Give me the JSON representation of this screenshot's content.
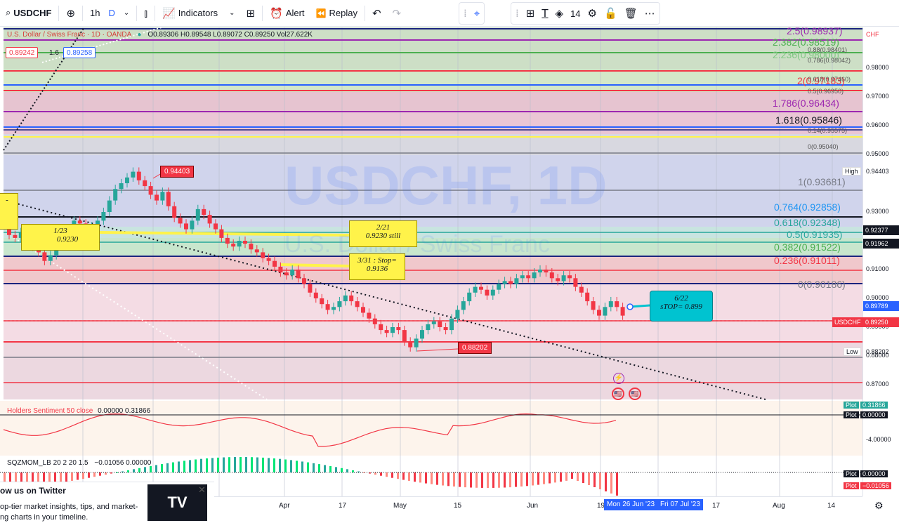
{
  "toolbar": {
    "symbol": "USDCHF",
    "interval": "1h",
    "interval_selected": "D",
    "indicators_label": "Indicators",
    "alert_label": "Alert",
    "replay_label": "Replay",
    "font_size": "14"
  },
  "legend": {
    "title": "U.S. Dollar / Swiss Franc · 1D · OANDA",
    "ohlc": "O0.89306 H0.89548 L0.89072 C0.89250 Vol27.622K",
    "sell_price": "0.89242",
    "spread": "1.6",
    "buy_price": "0.89258"
  },
  "watermark": {
    "symbol": "USDCHF, 1D",
    "name": "U.S. Dollar / Swiss Franc"
  },
  "price_axis": {
    "currency": "CHF",
    "ticks": [
      "0.98000",
      "0.97000",
      "0.96000",
      "0.95000",
      "0.93000",
      "0.91000",
      "0.90000",
      "0.89000",
      "0.88000",
      "0.87000"
    ],
    "high_label": "High",
    "high_value": "0.94403",
    "tag_1": "0.92377",
    "tag_2": "0.91962",
    "tag_3": "0.89789",
    "current_symbol": "USDCHF",
    "current_value": "0.89250",
    "low_label": "Low",
    "low_value": "0.88202"
  },
  "fib_levels": [
    {
      "text": "2.5(0.98937)",
      "color": "#9c27b0"
    },
    {
      "text": "2.382(0.98519)",
      "color": "#4caf50"
    },
    {
      "text": "2.236(0.98000)",
      "color": "#81c784"
    },
    {
      "text": "2(0.97183)",
      "color": "#f23645"
    },
    {
      "text": "1.786(0.96434)",
      "color": "#9c27b0"
    },
    {
      "text": "1.618(0.95846)",
      "color": "#131722"
    },
    {
      "text": "1(0.93681)",
      "color": "#787b86"
    },
    {
      "text": "0.764(0.92858)",
      "color": "#2196f3"
    },
    {
      "text": "0.618(0.92348)",
      "color": "#26a69a"
    },
    {
      "text": "0.5(0.91935)",
      "color": "#26a69a"
    },
    {
      "text": "0.382(0.91522)",
      "color": "#4caf50"
    },
    {
      "text": "0.236(0.91011)",
      "color": "#f23645"
    },
    {
      "text": "0(0.90186)",
      "color": "#787b86"
    }
  ],
  "fib_small": [
    {
      "text": "0.88(0.98401)"
    },
    {
      "text": "0.786(0.98042)"
    },
    {
      "text": "0.618(0.97460)"
    },
    {
      "text": "0.5(0.96950)"
    },
    {
      "text": "0.14(0.95575)"
    },
    {
      "text": "0(0.95040)"
    }
  ],
  "annotations": {
    "high_tag": "0.94403",
    "low_tag": "0.88202",
    "note_1a": "1/23",
    "note_1b": "0.9230",
    "note_2a": "2/21",
    "note_2b": "0.9230 still",
    "note_3a": "3/31 : Stop=",
    "note_3b": "0.9136",
    "note_4a": "6/22",
    "note_4b": "sTOP= 0.899"
  },
  "indicators": {
    "holders_label": "Holders Sentiment 50 close",
    "holders_values": "0.00000 0.31866",
    "holders_axis": "-4.00000",
    "holders_plot_label": "Plot",
    "holders_plot_1": "0.31866",
    "holders_plot_2": "0.00000",
    "sqz_label": "SQZMOM_LB 20 2 20 1.5",
    "sqz_values": "−0.01056 0.00000",
    "sqz_plot_1": "0.00000",
    "sqz_plot_2": "−0.01056"
  },
  "time_axis": {
    "labels": [
      "Apr",
      "17",
      "May",
      "15",
      "Jun",
      "17",
      "Aug",
      "14"
    ],
    "cursor_date_1": "Mon 26 Jun '23",
    "cursor_date_2": "Fri 07 Jul '23",
    "partial_19": "19"
  },
  "popup": {
    "title": "ow us on Twitter",
    "line1": "op-tier market insights, tips, and market-",
    "line2": "ng charts in your timeline.",
    "image_text": "TV"
  },
  "colors": {
    "accent": "#2962ff",
    "up": "#26a69a",
    "down": "#f23645"
  }
}
